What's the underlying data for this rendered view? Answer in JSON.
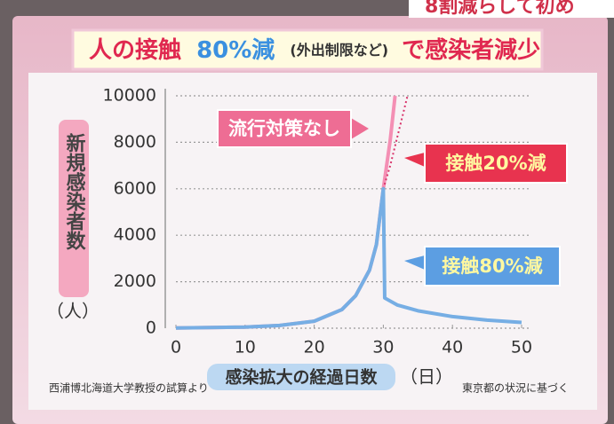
{
  "banner": "8割減らして初め",
  "chart_data": {
    "type": "line",
    "title_parts": [
      "人の接触",
      "80%減",
      "(外出制限など)",
      "で感染者減少"
    ],
    "y_label": "新規感染者数",
    "y_unit": "（人）",
    "x_label": "感染拡大の経過日数",
    "x_unit": "（日）",
    "source_left": "西浦博北海道大学教授の試算より",
    "source_right": "東京都の状況に基づく",
    "xlim": [
      0,
      50
    ],
    "xticks": [
      0,
      10,
      20,
      30,
      40,
      50
    ],
    "ylim": [
      0,
      10000
    ],
    "yticks": [
      0,
      2000,
      4000,
      6000,
      8000,
      10000
    ],
    "grid": true,
    "series": [
      {
        "name": "流行対策なし",
        "color": "#f48fb4",
        "style": "solid",
        "x": [
          0,
          5,
          10,
          15,
          20,
          24,
          26,
          28,
          29,
          30,
          31,
          31.7
        ],
        "values": [
          10,
          30,
          50,
          120,
          300,
          800,
          1400,
          2500,
          3600,
          6000,
          8100,
          10000
        ]
      },
      {
        "name": "接触20%減",
        "color": "#d8336a",
        "style": "dotted",
        "x": [
          30,
          31,
          32,
          33,
          33.5
        ],
        "values": [
          6000,
          7000,
          8200,
          9400,
          10000
        ]
      },
      {
        "name": "接触80%減",
        "color": "#76aee4",
        "style": "solid",
        "x": [
          0,
          5,
          10,
          15,
          20,
          24,
          26,
          28,
          29,
          30,
          30.2,
          32,
          35,
          40,
          45,
          50
        ],
        "values": [
          10,
          30,
          50,
          120,
          300,
          800,
          1400,
          2500,
          3600,
          6000,
          1300,
          1000,
          750,
          500,
          350,
          250
        ]
      }
    ]
  }
}
